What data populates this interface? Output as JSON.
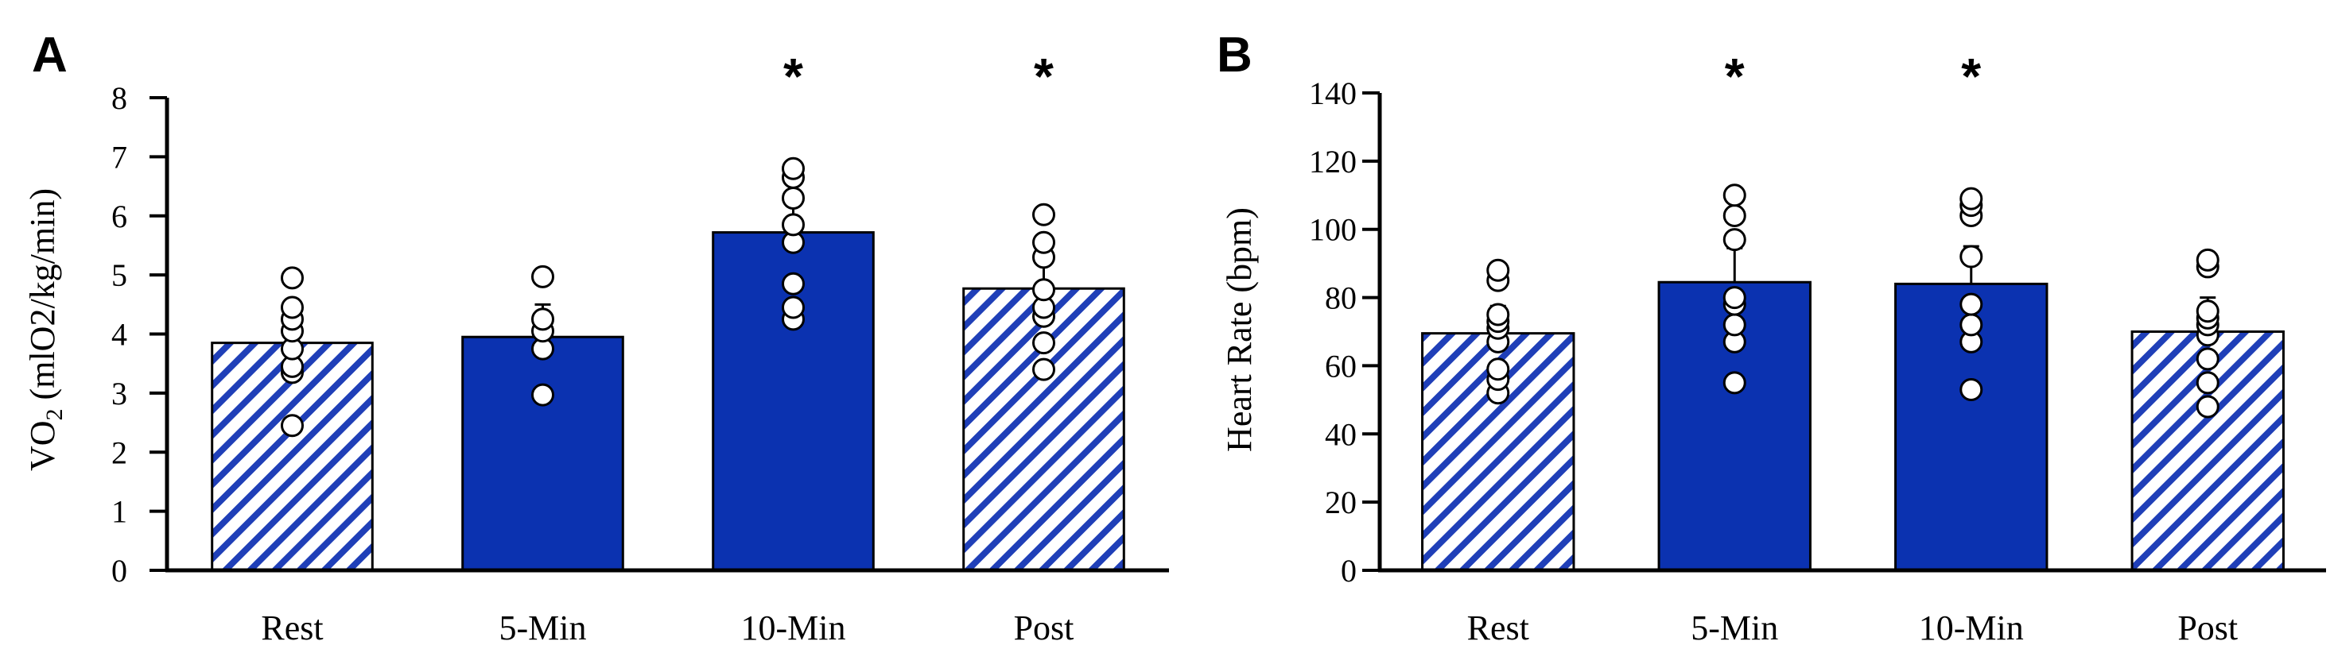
{
  "colors": {
    "bar_fill": "#0b32b0",
    "stripe": "#1f3fb8",
    "dot_fill": "#ffffff",
    "axis": "#000000"
  },
  "chart_data": [
    {
      "type": "bar",
      "panel_label": "A",
      "title": "",
      "xlabel": "",
      "ylabel": "VO",
      "ylabel_subscript": "2",
      "ylabel_suffix": " (mlO2/kg/min)",
      "ylim": [
        0,
        8
      ],
      "ytick_step": 1,
      "categories": [
        "Rest",
        "5-Min",
        "10-Min",
        "Post"
      ],
      "patterns": [
        "hatched",
        "solid",
        "solid",
        "hatched"
      ],
      "values": [
        3.85,
        3.95,
        5.72,
        4.77
      ],
      "error_upper": [
        0.35,
        0.55,
        0.6,
        0.55
      ],
      "significance": [
        "",
        "",
        "*",
        "*"
      ],
      "points": [
        [
          2.45,
          3.35,
          3.45,
          3.75,
          4.05,
          4.25,
          4.45,
          4.95
        ],
        [
          2.97,
          3.75,
          4.05,
          4.25,
          4.97
        ],
        [
          4.25,
          4.45,
          4.85,
          5.55,
          5.85,
          6.3,
          6.65,
          6.8
        ],
        [
          3.4,
          3.85,
          4.3,
          4.45,
          4.75,
          5.3,
          5.55,
          6.02
        ]
      ]
    },
    {
      "type": "bar",
      "panel_label": "B",
      "title": "",
      "xlabel": "",
      "ylabel": "Heart Rate (bpm)",
      "ylabel_subscript": "",
      "ylabel_suffix": "",
      "ylim": [
        0,
        140
      ],
      "ytick_step": 20,
      "categories": [
        "Rest",
        "5-Min",
        "10-Min",
        "Post"
      ],
      "patterns": [
        "hatched",
        "solid",
        "solid",
        "hatched"
      ],
      "values": [
        69.5,
        84.5,
        84,
        70
      ],
      "error_upper": [
        8,
        10,
        11,
        10
      ],
      "significance": [
        "",
        "*",
        "*",
        ""
      ],
      "points": [
        [
          52,
          56,
          59,
          67,
          71,
          73,
          75,
          85,
          88
        ],
        [
          55,
          67,
          72,
          78,
          80,
          97,
          104,
          110
        ],
        [
          53,
          67,
          72,
          78,
          92,
          104,
          107,
          109
        ],
        [
          48,
          55,
          62,
          69,
          72,
          74,
          76,
          89,
          91
        ]
      ]
    }
  ]
}
